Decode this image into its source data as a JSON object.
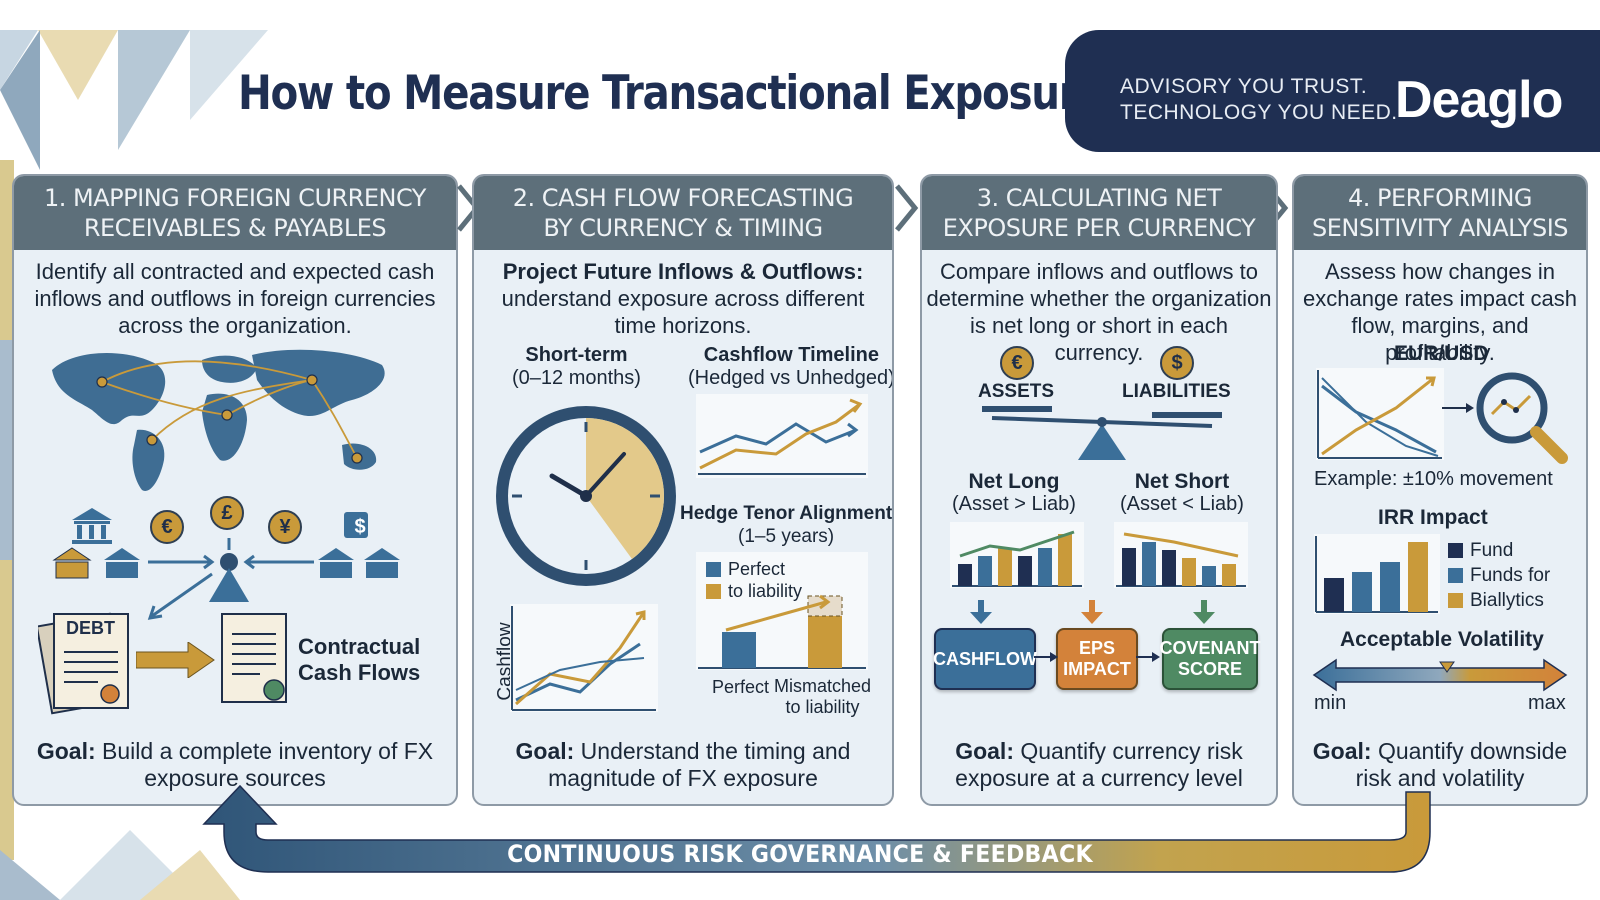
{
  "header": {
    "title": "How to Measure Transactional Exposure",
    "tagline_line1": "ADVISORY YOU TRUST.",
    "tagline_line2": "TECHNOLOGY YOU NEED.",
    "brand": "Deaglo"
  },
  "colors": {
    "navy": "#1f2f52",
    "steel": "#5d6f7a",
    "gold": "#c99a3a",
    "blue": "#3b6f99",
    "orange": "#d3823a",
    "green": "#4f8a63",
    "panel_bg": "#e9f0f6"
  },
  "panel1": {
    "head_line1": "1. MAPPING FOREIGN CURRENCY",
    "head_line2": "RECEIVABLES & PAYABLES",
    "desc": "Identify all contracted and expected cash inflows and outflows in foreign currencies across the organization.",
    "coins": [
      "€",
      "£",
      "¥",
      "$"
    ],
    "debt_label": "DEBT",
    "contract_line1": "Contractual",
    "contract_line2": "Cash Flows",
    "goal_label": "Goal:",
    "goal_text": " Build a complete inventory of FX exposure sources"
  },
  "panel2": {
    "head_line1": "2. CASH FLOW FORECASTING",
    "head_line2": "BY CURRENCY & TIMING",
    "desc_bold": "Project Future Inflows & Outflows:",
    "desc": "understand exposure across different time horizons.",
    "short_term_title": "Short-term",
    "short_term_sub": "(0–12 months)",
    "timeline_title": "Cashflow Timeline",
    "timeline_sub": "(Hedged vs Unhedged)",
    "tenor_title": "Hedge Tenor Alignment",
    "tenor_sub": "(1–5 years)",
    "legend_item1": "Perfect",
    "legend_item2": "to liability",
    "cashflow_axis": "Cashflow",
    "bar_label1": "Perfect",
    "bar_label2_line1": "Mismatched",
    "bar_label2_line2": "to liability",
    "goal_label": "Goal:",
    "goal_text": " Understand the timing and magnitude of FX exposure"
  },
  "panel3": {
    "head_line1": "3. CALCULATING NET",
    "head_line2": "EXPOSURE PER CURRENCY",
    "desc": "Compare inflows and outflows to determine whether the organization is net long or short in each currency.",
    "coin_assets": "€",
    "coin_liabilities": "$",
    "assets_label": "ASSETS",
    "liabilities_label": "LIABILITIES",
    "net_long_title": "Net Long",
    "net_long_sub": "(Asset > Liab)",
    "net_short_title": "Net Short",
    "net_short_sub": "(Asset < Liab)",
    "box_cashflow": "CASHFLOW",
    "box_eps_line1": "EPS",
    "box_eps_line2": "IMPACT",
    "box_cov_line1": "COVENANT",
    "box_cov_line2": "SCORE",
    "goal_label": "Goal:",
    "goal_text": " Quantify currency risk exposure at a currency level"
  },
  "panel4": {
    "head_line1": "4. PERFORMING",
    "head_line2": "SENSITIVITY ANALYSIS",
    "desc": "Assess how changes in exchange rates impact cash flow, margins, and profitability.",
    "pair": "EUR/USD",
    "example": "Example: ±10% movement",
    "irr_title": "IRR Impact",
    "legend": [
      "Fund",
      "Funds for",
      "Biallytics"
    ],
    "volatility_title": "Acceptable Volatility",
    "min_label": "min",
    "max_label": "max",
    "goal_label": "Goal:",
    "goal_text": " Quantify downside risk and volatility"
  },
  "footer": {
    "loop_label": "CONTINUOUS RISK GOVERNANCE & FEEDBACK"
  }
}
